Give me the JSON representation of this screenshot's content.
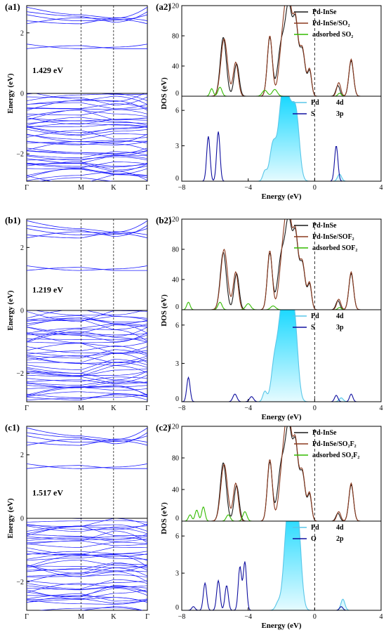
{
  "chart_data": [
    {
      "type": "line",
      "panel": "a1",
      "band_gap": "1.429 eV",
      "ylabel": "Energy (eV)",
      "x_ticks": [
        "Γ",
        "M",
        "K",
        "Γ"
      ],
      "y_ticks": [
        "2",
        "0",
        "−2"
      ],
      "ylim": [
        -2.9,
        2.9
      ],
      "cb_min": 1.429,
      "path": [
        {
          "label": "Γ",
          "pos": 0
        },
        {
          "label": "M",
          "pos": 0.45
        },
        {
          "label": "K",
          "pos": 0.72
        },
        {
          "label": "Γ",
          "pos": 1
        }
      ],
      "colors": {
        "bands": "#1a1aff"
      }
    },
    {
      "type": "area",
      "panel": "a2",
      "xlabel": "Energy (eV)",
      "ylabel": "DOS (eV)",
      "xlim": [
        -8,
        4
      ],
      "x_ticks": [
        "−8",
        "−4",
        "0",
        "4"
      ],
      "top": {
        "ylim": [
          0,
          120
        ],
        "y_ticks": [
          "0",
          "40",
          "80",
          "120"
        ],
        "series": [
          {
            "name": "Pd-InSe",
            "color": "#1a1a1a",
            "peaks": [
              [
                -5.5,
                78,
                0.18
              ],
              [
                -4.7,
                43,
                0.15
              ],
              [
                -2.7,
                78,
                0.15
              ],
              [
                -2.0,
                68,
                0.22
              ],
              [
                -1.55,
                114,
                0.2
              ],
              [
                -1.15,
                86,
                0.15
              ],
              [
                -0.75,
                62,
                0.18
              ],
              [
                -0.3,
                32,
                0.12
              ],
              [
                1.4,
                14,
                0.12
              ],
              [
                2.2,
                47,
                0.14
              ]
            ]
          },
          {
            "name": "Pd-InSe/SO₂",
            "color": "#8b3a1f",
            "peaks": [
              [
                -5.45,
                76,
                0.2
              ],
              [
                -4.75,
                45,
                0.15
              ],
              [
                -2.7,
                80,
                0.15
              ],
              [
                -1.9,
                76,
                0.22
              ],
              [
                -1.55,
                116,
                0.2
              ],
              [
                -1.15,
                88,
                0.15
              ],
              [
                -0.75,
                64,
                0.18
              ],
              [
                -0.3,
                34,
                0.12
              ],
              [
                1.45,
                18,
                0.12
              ],
              [
                2.2,
                49,
                0.14
              ]
            ]
          },
          {
            "name": "adsorbed SO₂",
            "color": "#33bb00",
            "peaks": [
              [
                -6.2,
                10,
                0.1
              ],
              [
                -5.7,
                12,
                0.12
              ],
              [
                -3.0,
                8,
                0.15
              ],
              [
                -2.4,
                9,
                0.15
              ],
              [
                1.5,
                4,
                0.1
              ]
            ]
          }
        ]
      },
      "bottom": {
        "ylim": [
          0,
          7.2
        ],
        "y_ticks": [
          "0",
          "3",
          "6"
        ],
        "series": [
          {
            "name": "Pd",
            "orbital": "4d",
            "color": "#59c6e8",
            "fill": "#00d4ff",
            "peaks": [
              [
                -3.0,
                0.8,
                0.12
              ],
              [
                -2.5,
                3.2,
                0.2
              ],
              [
                -2.0,
                4.5,
                0.2
              ],
              [
                -1.6,
                6.6,
                0.3
              ],
              [
                -1.1,
                4.5,
                0.2
              ],
              [
                1.5,
                0.6,
                0.12
              ]
            ]
          },
          {
            "name": "S",
            "orbital": "3p",
            "color": "#1010a0",
            "peaks": [
              [
                -6.4,
                3.8,
                0.1
              ],
              [
                -5.8,
                4.2,
                0.1
              ],
              [
                1.3,
                3.0,
                0.1
              ]
            ]
          }
        ]
      }
    },
    {
      "type": "line",
      "panel": "b1",
      "band_gap": "1.219 eV",
      "ylabel": "Energy (eV)",
      "x_ticks": [
        "Γ",
        "M",
        "K",
        "Γ"
      ],
      "y_ticks": [
        "2",
        "0",
        "−2"
      ],
      "ylim": [
        -2.9,
        2.9
      ],
      "cb_min": 1.219,
      "path": [
        {
          "label": "Γ",
          "pos": 0
        },
        {
          "label": "M",
          "pos": 0.45
        },
        {
          "label": "K",
          "pos": 0.72
        },
        {
          "label": "Γ",
          "pos": 1
        }
      ],
      "colors": {
        "bands": "#1a1aff"
      }
    },
    {
      "type": "area",
      "panel": "b2",
      "xlabel": "Energy (eV)",
      "ylabel": "DOS (eV)",
      "xlim": [
        -8,
        4
      ],
      "x_ticks": [
        "−8",
        "−4",
        "0",
        "4"
      ],
      "top": {
        "ylim": [
          0,
          120
        ],
        "y_ticks": [
          "0",
          "40",
          "80",
          "120"
        ],
        "series": [
          {
            "name": "Pd-InSe",
            "color": "#1a1a1a",
            "peaks": [
              [
                -5.5,
                76,
                0.18
              ],
              [
                -4.7,
                48,
                0.15
              ],
              [
                -2.7,
                75,
                0.15
              ],
              [
                -2.0,
                70,
                0.22
              ],
              [
                -1.55,
                113,
                0.2
              ],
              [
                -1.15,
                86,
                0.15
              ],
              [
                -0.75,
                62,
                0.18
              ],
              [
                -0.3,
                32,
                0.12
              ],
              [
                1.4,
                12,
                0.12
              ],
              [
                2.2,
                48,
                0.14
              ]
            ]
          },
          {
            "name": "Pd-InSe/SOF₂",
            "color": "#8b3a1f",
            "peaks": [
              [
                -5.45,
                80,
                0.2
              ],
              [
                -4.75,
                50,
                0.15
              ],
              [
                -2.7,
                78,
                0.15
              ],
              [
                -1.9,
                74,
                0.22
              ],
              [
                -1.55,
                115,
                0.2
              ],
              [
                -1.15,
                88,
                0.15
              ],
              [
                -0.75,
                64,
                0.18
              ],
              [
                -0.3,
                34,
                0.12
              ],
              [
                1.45,
                14,
                0.12
              ],
              [
                2.2,
                50,
                0.14
              ]
            ]
          },
          {
            "name": "adsorbed SOF₂",
            "color": "#33bb00",
            "peaks": [
              [
                -7.6,
                10,
                0.1
              ],
              [
                -5.7,
                10,
                0.12
              ],
              [
                -4.0,
                8,
                0.15
              ],
              [
                -2.5,
                5,
                0.15
              ],
              [
                1.5,
                3,
                0.1
              ]
            ]
          }
        ]
      },
      "bottom": {
        "ylim": [
          0,
          7.2
        ],
        "y_ticks": [
          "0",
          "3",
          "6"
        ],
        "series": [
          {
            "name": "Pd",
            "orbital": "4d",
            "color": "#59c6e8",
            "fill": "#00d4ff",
            "peaks": [
              [
                -3.0,
                0.8,
                0.12
              ],
              [
                -2.4,
                3.3,
                0.2
              ],
              [
                -2.0,
                5.0,
                0.2
              ],
              [
                -1.6,
                6.5,
                0.28
              ],
              [
                -1.2,
                4.8,
                0.2
              ],
              [
                1.6,
                0.3,
                0.12
              ]
            ]
          },
          {
            "name": "S",
            "orbital": "3p",
            "color": "#1010a0",
            "peaks": [
              [
                -7.6,
                1.9,
                0.1
              ],
              [
                -4.8,
                0.6,
                0.12
              ],
              [
                -3.8,
                0.4,
                0.12
              ],
              [
                1.3,
                0.5,
                0.1
              ],
              [
                2.2,
                0.6,
                0.1
              ]
            ]
          }
        ]
      }
    },
    {
      "type": "line",
      "panel": "c1",
      "band_gap": "1.517 eV",
      "ylabel": "Energy (eV)",
      "x_ticks": [
        "Γ",
        "M",
        "K",
        "Γ"
      ],
      "y_ticks": [
        "2",
        "0",
        "−2"
      ],
      "ylim": [
        -2.9,
        2.9
      ],
      "cb_min": 1.517,
      "path": [
        {
          "label": "Γ",
          "pos": 0
        },
        {
          "label": "M",
          "pos": 0.45
        },
        {
          "label": "K",
          "pos": 0.72
        },
        {
          "label": "Γ",
          "pos": 1
        }
      ],
      "colors": {
        "bands": "#1a1aff"
      }
    },
    {
      "type": "area",
      "panel": "c2",
      "xlabel": "Energy (eV)",
      "ylabel": "DOS (eV)",
      "xlim": [
        -8,
        4
      ],
      "x_ticks": [
        "−8",
        "−4",
        "0",
        "4"
      ],
      "top": {
        "ylim": [
          0,
          120
        ],
        "y_ticks": [
          "0",
          "40",
          "80",
          "120"
        ],
        "series": [
          {
            "name": "Pd-InSe",
            "color": "#1a1a1a",
            "peaks": [
              [
                -5.5,
                74,
                0.18
              ],
              [
                -4.7,
                45,
                0.15
              ],
              [
                -2.7,
                75,
                0.15
              ],
              [
                -2.0,
                70,
                0.22
              ],
              [
                -1.55,
                114,
                0.2
              ],
              [
                -1.15,
                84,
                0.15
              ],
              [
                -0.75,
                62,
                0.18
              ],
              [
                -0.3,
                32,
                0.12
              ],
              [
                1.4,
                10,
                0.12
              ],
              [
                2.2,
                46,
                0.14
              ]
            ]
          },
          {
            "name": "Pd-InSe/SO₂F₂",
            "color": "#8b3a1f",
            "peaks": [
              [
                -5.45,
                72,
                0.2
              ],
              [
                -4.75,
                48,
                0.15
              ],
              [
                -2.7,
                78,
                0.15
              ],
              [
                -1.9,
                72,
                0.22
              ],
              [
                -1.55,
                115,
                0.2
              ],
              [
                -1.15,
                86,
                0.15
              ],
              [
                -0.75,
                64,
                0.18
              ],
              [
                -0.3,
                34,
                0.12
              ],
              [
                1.45,
                12,
                0.12
              ],
              [
                2.2,
                48,
                0.14
              ]
            ]
          },
          {
            "name": "adsorbed SO₂F₂",
            "color": "#33bb00",
            "peaks": [
              [
                -7.5,
                8,
                0.1
              ],
              [
                -7.1,
                14,
                0.1
              ],
              [
                -6.7,
                18,
                0.1
              ],
              [
                -5.2,
                8,
                0.12
              ],
              [
                -4.2,
                12,
                0.12
              ]
            ]
          }
        ]
      },
      "bottom": {
        "ylim": [
          0,
          7.2
        ],
        "y_ticks": [
          "0",
          "3",
          "6"
        ],
        "series": [
          {
            "name": "Pd",
            "orbital": "4d",
            "color": "#59c6e8",
            "fill": "#00d4ff",
            "peaks": [
              [
                -2.2,
                0.6,
                0.15
              ],
              [
                -1.7,
                4.0,
                0.2
              ],
              [
                -1.4,
                6.9,
                0.25
              ],
              [
                -1.0,
                6.0,
                0.2
              ],
              [
                1.7,
                0.9,
                0.12
              ]
            ]
          },
          {
            "name": "O",
            "orbital": "2p",
            "color": "#1010a0",
            "peaks": [
              [
                -6.6,
                2.2,
                0.1
              ],
              [
                -5.8,
                2.4,
                0.1
              ],
              [
                -5.3,
                2.0,
                0.1
              ],
              [
                -4.5,
                3.5,
                0.1
              ],
              [
                -4.2,
                3.9,
                0.1
              ],
              [
                -7.3,
                0.3,
                0.1
              ],
              [
                1.6,
                0.3,
                0.1
              ]
            ]
          }
        ]
      }
    }
  ]
}
